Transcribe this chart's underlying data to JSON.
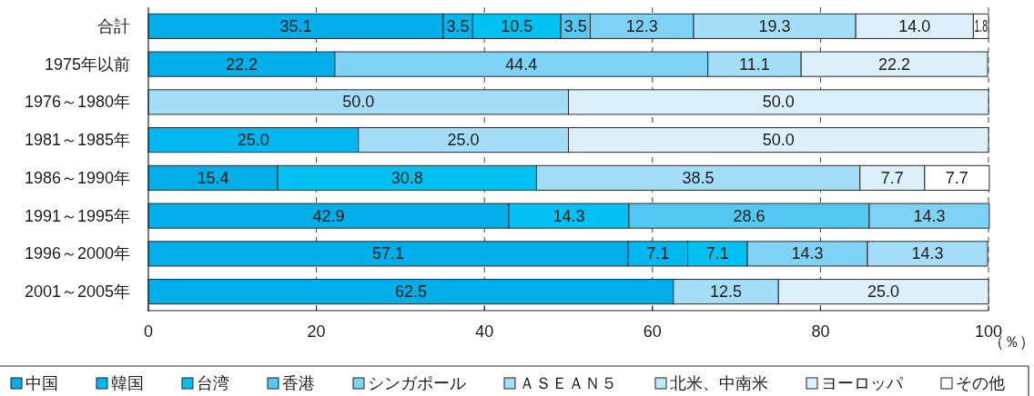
{
  "chart_data": {
    "type": "bar",
    "orientation": "horizontal",
    "stacked": true,
    "categories": [
      "合計",
      "1975年以前",
      "1976～1980年",
      "1981～1985年",
      "1986～1990年",
      "1991～1995年",
      "1996～2000年",
      "2001～2005年"
    ],
    "xlabel": "（％）",
    "xlim": [
      0,
      100
    ],
    "xticks": [
      0,
      20,
      40,
      60,
      80,
      100
    ],
    "grid": "x",
    "legend": "bottom",
    "series": [
      {
        "name": "中国",
        "color": "#00aeea",
        "values": [
          35.1,
          22.2,
          null,
          null,
          15.4,
          42.9,
          57.1,
          62.5
        ],
        "value_labels": [
          "35.1",
          "22.2",
          null,
          null,
          "15.4",
          "42.9",
          "57.1",
          "62.5"
        ]
      },
      {
        "name": "韓国",
        "color": "#00b7ef",
        "values": [
          3.5,
          null,
          null,
          25.0,
          null,
          null,
          7.1,
          null
        ],
        "value_labels": [
          "3.5",
          null,
          null,
          "25.0",
          null,
          null,
          "7.1",
          null
        ]
      },
      {
        "name": "台湾",
        "color": "#00c1f1",
        "values": [
          10.5,
          null,
          null,
          null,
          30.8,
          14.3,
          7.1,
          null
        ],
        "value_labels": [
          "10.5",
          null,
          null,
          null,
          "30.8",
          "14.3",
          "7.1",
          null
        ]
      },
      {
        "name": "香港",
        "color": "#52c8f2",
        "values": [
          3.5,
          null,
          null,
          null,
          null,
          28.6,
          null,
          null
        ],
        "value_labels": [
          "3.5",
          null,
          null,
          null,
          null,
          "28.6",
          null,
          null
        ]
      },
      {
        "name": "シンガポール",
        "color": "#7ed2f6",
        "values": [
          12.3,
          44.4,
          null,
          null,
          null,
          14.3,
          14.3,
          null
        ],
        "value_labels": [
          "12.3",
          "44.4",
          null,
          null,
          null,
          "14.3",
          "14.3",
          null
        ]
      },
      {
        "name": "ＡＳＥＡＮ５",
        "color": "#a3ddf8",
        "values": [
          19.3,
          11.1,
          50.0,
          25.0,
          38.5,
          null,
          14.3,
          12.5
        ],
        "value_labels": [
          "19.3",
          "11.1",
          "50.0",
          "25.0",
          "38.5",
          null,
          "14.3",
          "12.5"
        ]
      },
      {
        "name": "北米、中南米",
        "color": "#c3e8fa",
        "values": [
          null,
          null,
          null,
          null,
          null,
          null,
          null,
          null
        ]
      },
      {
        "name": "ヨーロッパ",
        "color": "#dbf0fb",
        "values": [
          14.0,
          22.2,
          50.0,
          50.0,
          7.7,
          null,
          null,
          25.0
        ],
        "value_labels": [
          "14.0",
          "22.2",
          "50.0",
          "50.0",
          "7.7",
          null,
          null,
          "25.0"
        ]
      },
      {
        "name": "その他",
        "color": "#ffffff",
        "values": [
          1.8,
          null,
          null,
          null,
          7.7,
          null,
          null,
          null
        ],
        "value_labels": [
          "1.8",
          null,
          null,
          null,
          "7.7",
          null,
          null,
          null
        ]
      }
    ]
  }
}
